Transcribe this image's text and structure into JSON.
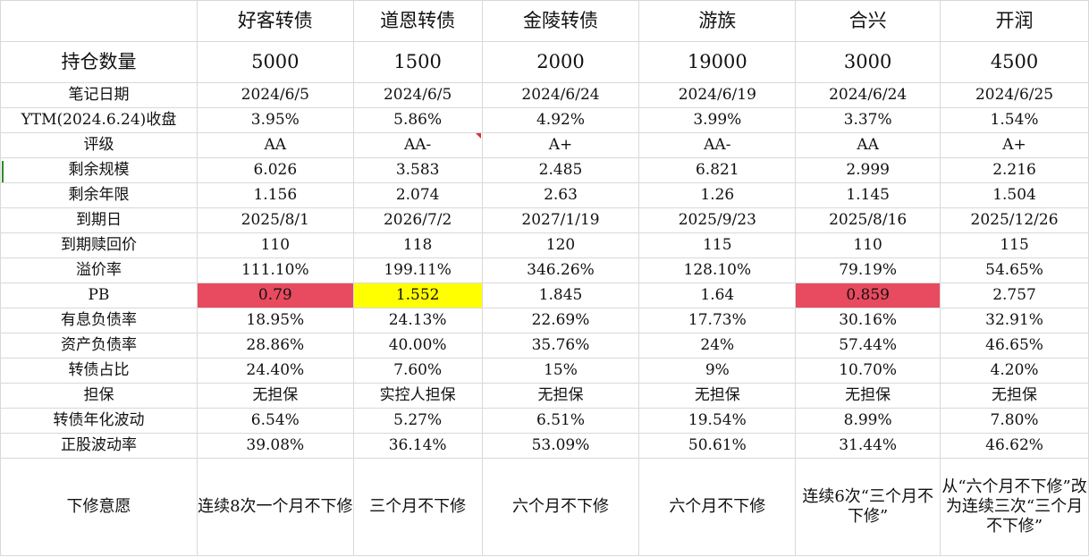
{
  "colors": {
    "pb_low": "#e84a5f",
    "pb_mid": "#ffff00",
    "grid": "#d9d9d9"
  },
  "columns": [
    "好客转债",
    "道恩转债",
    "金陵转债",
    "游族",
    "合兴",
    "开润"
  ],
  "rows": [
    {
      "label": "持仓数量",
      "values": [
        "5000",
        "1500",
        "2000",
        "19000",
        "3000",
        "4500"
      ]
    },
    {
      "label": "笔记日期",
      "values": [
        "2024/6/5",
        "2024/6/5",
        "2024/6/24",
        "2024/6/19",
        "2024/6/24",
        "2024/6/25"
      ]
    },
    {
      "label": "YTM(2024.6.24)收盘",
      "values": [
        "3.95%",
        "5.86%",
        "4.92%",
        "3.99%",
        "3.37%",
        "1.54%"
      ]
    },
    {
      "label": "评级",
      "values": [
        "AA",
        "AA-",
        "A+",
        "AA-",
        "AA",
        "A+"
      ]
    },
    {
      "label": "剩余规模",
      "values": [
        "6.026",
        "3.583",
        "2.485",
        "6.821",
        "2.999",
        "2.216"
      ]
    },
    {
      "label": "剩余年限",
      "values": [
        "1.156",
        "2.074",
        "2.63",
        "1.26",
        "1.145",
        "1.504"
      ]
    },
    {
      "label": "到期日",
      "values": [
        "2025/8/1",
        "2026/7/2",
        "2027/1/19",
        "2025/9/23",
        "2025/8/16",
        "2025/12/26"
      ]
    },
    {
      "label": "到期赎回价",
      "values": [
        "110",
        "118",
        "120",
        "115",
        "110",
        "115"
      ]
    },
    {
      "label": "溢价率",
      "values": [
        "111.10%",
        "199.11%",
        "346.26%",
        "128.10%",
        "79.19%",
        "54.65%"
      ]
    },
    {
      "label": "PB",
      "values": [
        "0.79",
        "1.552",
        "1.845",
        "1.64",
        "0.859",
        "2.757"
      ]
    },
    {
      "label": "有息负债率",
      "values": [
        "18.95%",
        "24.13%",
        "22.69%",
        "17.73%",
        "30.16%",
        "32.91%"
      ]
    },
    {
      "label": "资产负债率",
      "values": [
        "28.86%",
        "40.00%",
        "35.76%",
        "24%",
        "57.44%",
        "46.65%"
      ]
    },
    {
      "label": "转债占比",
      "values": [
        "24.40%",
        "7.60%",
        "15%",
        "9%",
        "10.70%",
        "4.20%"
      ]
    },
    {
      "label": "担保",
      "values": [
        "无担保",
        "实控人担保",
        "无担保",
        "无担保",
        "无担保",
        "无担保"
      ]
    },
    {
      "label": "转债年化波动",
      "values": [
        "6.54%",
        "5.27%",
        "6.51%",
        "19.54%",
        "8.99%",
        "7.80%"
      ]
    },
    {
      "label": "正股波动率",
      "values": [
        "39.08%",
        "36.14%",
        "53.09%",
        "50.61%",
        "31.44%",
        "46.62%"
      ]
    },
    {
      "label": "下修意愿",
      "values": [
        "连续8次一个月不下修",
        "三个月不下修",
        "六个月不下修",
        "六个月不下修",
        "连续6次“三个月不下修”",
        "从“六个月不下修”改为连续三次“三个月不下修”"
      ]
    }
  ]
}
